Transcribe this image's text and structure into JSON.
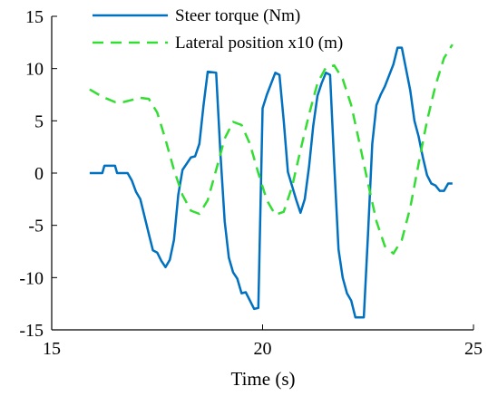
{
  "chart_data": {
    "type": "line",
    "title": "",
    "xlabel": "Time (s)",
    "ylabel": "",
    "xlim": [
      15,
      25
    ],
    "ylim": [
      -15,
      15
    ],
    "x_ticks": [
      "15",
      "20",
      "25"
    ],
    "y_ticks": [
      "-15",
      "-10",
      "-5",
      "0",
      "5",
      "10",
      "15"
    ],
    "x_tick_values": [
      15,
      20,
      25
    ],
    "y_tick_values": [
      -15,
      -10,
      -5,
      0,
      5,
      10,
      15
    ],
    "grid": false,
    "legend_position": "top-right",
    "series": [
      {
        "name": "Steer torque (Nm)",
        "color": "#0070c0",
        "style": "solid",
        "x": [
          15.9,
          16.2,
          16.25,
          16.5,
          16.55,
          16.8,
          16.9,
          17.0,
          17.1,
          17.3,
          17.4,
          17.5,
          17.6,
          17.7,
          17.8,
          17.9,
          18.0,
          18.1,
          18.3,
          18.4,
          18.5,
          18.6,
          18.7,
          18.9,
          19.0,
          19.1,
          19.2,
          19.3,
          19.4,
          19.5,
          19.6,
          19.8,
          19.9,
          20.0,
          20.1,
          20.3,
          20.4,
          20.5,
          20.6,
          20.8,
          20.9,
          21.0,
          21.1,
          21.2,
          21.3,
          21.4,
          21.5,
          21.6,
          21.7,
          21.8,
          21.9,
          22.0,
          22.1,
          22.2,
          22.3,
          22.4,
          22.5,
          22.6,
          22.7,
          22.8,
          22.9,
          23.1,
          23.2,
          23.3,
          23.5,
          23.6,
          23.7,
          23.8,
          23.9,
          24.0,
          24.1,
          24.2,
          24.3,
          24.4,
          24.5
        ],
        "y": [
          0,
          0,
          0.7,
          0.7,
          0,
          0,
          -0.7,
          -1.8,
          -2.5,
          -5.8,
          -7.4,
          -7.6,
          -8.4,
          -9.0,
          -8.3,
          -6.4,
          -2.1,
          0.3,
          1.5,
          1.6,
          2.8,
          6.5,
          9.7,
          9.6,
          1.9,
          -4.6,
          -8.1,
          -9.5,
          -10.1,
          -11.5,
          -11.4,
          -13.0,
          -12.9,
          6.2,
          7.5,
          9.6,
          9.4,
          5.0,
          0.1,
          -2.6,
          -3.8,
          -2.5,
          0.6,
          4.5,
          7.4,
          8.6,
          9.6,
          9.4,
          0.8,
          -7.3,
          -10.0,
          -11.5,
          -12.2,
          -13.8,
          -13.8,
          -13.8,
          -5.7,
          2.8,
          6.5,
          7.5,
          8.3,
          10.4,
          12.0,
          12.0,
          7.9,
          5.0,
          3.5,
          1.5,
          -0.2,
          -1.0,
          -1.2,
          -1.7,
          -1.7,
          -1.0,
          -1.0
        ]
      },
      {
        "name": "Lateral position x10 (m)",
        "color": "#33dd33",
        "style": "dashed",
        "x": [
          15.9,
          16.2,
          16.5,
          16.7,
          16.9,
          17.1,
          17.3,
          17.5,
          17.7,
          17.9,
          18.1,
          18.3,
          18.5,
          18.7,
          18.9,
          19.1,
          19.3,
          19.5,
          19.7,
          19.9,
          20.1,
          20.3,
          20.5,
          20.7,
          20.9,
          21.1,
          21.3,
          21.5,
          21.7,
          21.9,
          22.1,
          22.3,
          22.5,
          22.7,
          22.9,
          23.1,
          23.3,
          23.5,
          23.7,
          23.9,
          24.1,
          24.3,
          24.5
        ],
        "y": [
          8.0,
          7.3,
          6.8,
          6.8,
          7.0,
          7.2,
          7.1,
          5.8,
          3.2,
          0.3,
          -2.1,
          -3.6,
          -3.9,
          -2.6,
          0.3,
          3.3,
          4.9,
          4.6,
          2.8,
          0.0,
          -2.6,
          -4.0,
          -3.7,
          -1.3,
          2.2,
          5.6,
          8.6,
          10.1,
          10.3,
          9.0,
          6.5,
          2.8,
          -1.0,
          -4.6,
          -7.0,
          -7.7,
          -6.4,
          -3.3,
          0.9,
          5.0,
          8.4,
          11.0,
          12.3
        ]
      }
    ]
  }
}
